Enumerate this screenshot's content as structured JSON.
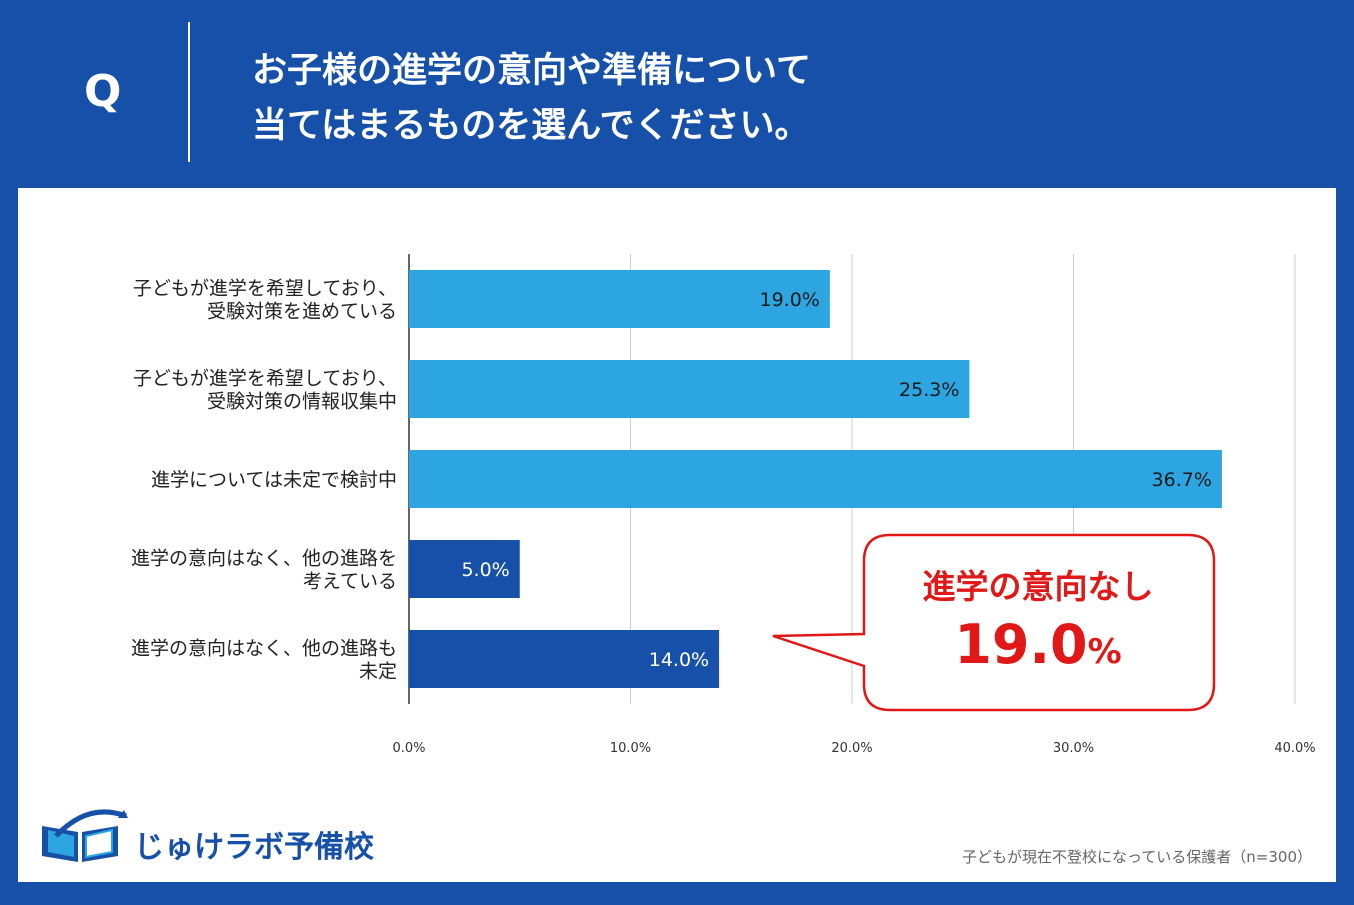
{
  "header": {
    "q_mark": "Q",
    "title_line1": "お子様の進学の意向や準備について",
    "title_line2": "当てはまるものを選んでください。"
  },
  "colors": {
    "background": "#1650a8",
    "bar_light": "#2ca5e0",
    "bar_dark": "#1650a8",
    "callout_border": "#e01818",
    "callout_text": "#e01818"
  },
  "chart_data": {
    "type": "bar",
    "orientation": "horizontal",
    "categories": [
      [
        "子どもが進学を希望しており、",
        "受験対策を進めている"
      ],
      [
        "子どもが進学を希望しており、",
        "受験対策の情報収集中"
      ],
      [
        "進学については未定で検討中"
      ],
      [
        "進学の意向はなく、他の進路を",
        "考えている"
      ],
      [
        "進学の意向はなく、他の進路も",
        "未定"
      ]
    ],
    "values": [
      19.0,
      25.3,
      36.7,
      5.0,
      14.0
    ],
    "value_labels": [
      "19.0%",
      "25.3%",
      "36.7%",
      "5.0%",
      "14.0%"
    ],
    "bar_groups": [
      "light",
      "light",
      "light",
      "dark",
      "dark"
    ],
    "xlim": [
      0,
      40
    ],
    "x_ticks": [
      0,
      10,
      20,
      30,
      40
    ],
    "x_tick_labels": [
      "0.0%",
      "10.0%",
      "20.0%",
      "30.0%",
      "40.0%"
    ],
    "grid": true,
    "annotation": {
      "title": "進学の意向なし",
      "value": "19.0",
      "unit": "%"
    }
  },
  "brand": {
    "name": "じゅけラボ予備校"
  },
  "source": "子どもが現在不登校になっている保護者（n=300）"
}
